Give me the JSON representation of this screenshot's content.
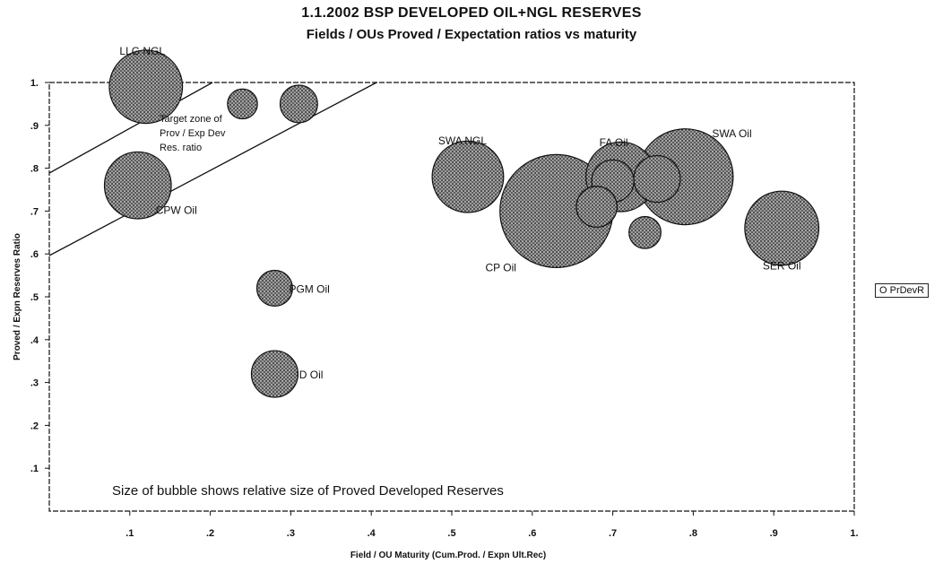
{
  "chart_data": {
    "type": "scatter",
    "title": "1.1.2002 BSP DEVELOPED OIL+NGL RESERVES",
    "subtitle": "Fields / OUs Proved / Expectation ratios vs maturity",
    "xlabel": "Field / OU  Maturity (Cum.Prod. / Expn Ult.Rec)",
    "ylabel": "Proved / Expn Reserves Ratio",
    "xlim": [
      0,
      1.0
    ],
    "ylim": [
      0,
      1.0
    ],
    "x_ticks": [
      ".1",
      ".2",
      ".3",
      ".4",
      ".5",
      ".6",
      ".7",
      ".8",
      ".9",
      "1."
    ],
    "y_ticks": [
      ".1",
      ".2",
      ".3",
      ".4",
      ".5",
      ".6",
      ".7",
      ".8",
      ".9",
      "1."
    ],
    "grid": false,
    "legend": {
      "placement": "right",
      "entries": [
        "O PrDevR"
      ]
    },
    "series": [
      {
        "name": "PrDevR",
        "points": [
          {
            "label": "LLG NGL",
            "x": 0.12,
            "y": 0.99,
            "size": 0.42
          },
          {
            "label": "CPW Oil",
            "x": 0.11,
            "y": 0.76,
            "size": 0.35
          },
          {
            "label": "SWA NGL",
            "x": 0.52,
            "y": 0.78,
            "size": 0.4
          },
          {
            "label": "CP Oil",
            "x": 0.63,
            "y": 0.7,
            "size": 1.0
          },
          {
            "label": "FA Oil",
            "x": 0.71,
            "y": 0.78,
            "size": 0.38
          },
          {
            "label": "SWA Oil",
            "x": 0.79,
            "y": 0.78,
            "size": 0.72
          },
          {
            "label": "SER Oil",
            "x": 0.91,
            "y": 0.66,
            "size": 0.43
          },
          {
            "label": "PGM Oil",
            "x": 0.28,
            "y": 0.52,
            "size": 0.1
          },
          {
            "label": "ID Oil",
            "x": 0.28,
            "y": 0.32,
            "size": 0.17
          },
          {
            "label": "",
            "x": 0.24,
            "y": 0.95,
            "size": 0.07
          },
          {
            "label": "",
            "x": 0.31,
            "y": 0.95,
            "size": 0.11
          },
          {
            "label": "",
            "x": 0.74,
            "y": 0.65,
            "size": 0.08
          },
          {
            "label": "",
            "x": 0.68,
            "y": 0.71,
            "size": 0.13
          },
          {
            "label": "",
            "x": 0.7,
            "y": 0.77,
            "size": 0.14
          },
          {
            "label": "",
            "x": 0.755,
            "y": 0.775,
            "size": 0.17
          }
        ]
      }
    ],
    "annotations": [
      "Target zone of\nProv / Exp Dev\nRes. ratio",
      "Size of bubble shows relative size of Proved Developed Reserves"
    ]
  }
}
